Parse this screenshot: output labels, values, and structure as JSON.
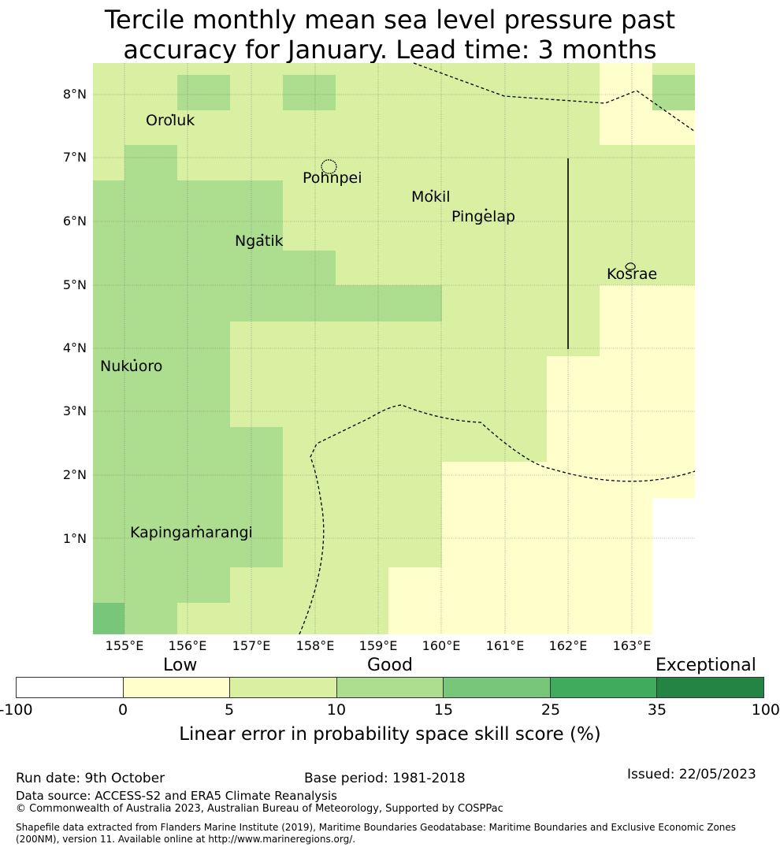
{
  "title_line1": "Tercile monthly mean sea level pressure past",
  "title_line2": "accuracy for January. Lead time: 3 months",
  "map": {
    "lon_labels": [
      "155°E",
      "156°E",
      "157°E",
      "158°E",
      "159°E",
      "160°E",
      "161°E",
      "162°E",
      "163°E"
    ],
    "lat_labels": [
      "8°N",
      "7°N",
      "6°N",
      "5°N",
      "4°N",
      "3°N",
      "2°N",
      "1°N"
    ],
    "places": [
      "Oroluk",
      "Pohnpei",
      "Mokil",
      "Pingelap",
      "Ngatik",
      "Kosrae",
      "Nukuoro",
      "Kapingamarangi"
    ],
    "category_colors": {
      "white": "#ffffff",
      "low": "#ffffcc",
      "good_low": "#d9f0a3",
      "good_high": "#addd8e",
      "good_plus": "#78c679",
      "excellent": "#41ab5d",
      "exceptional": "#238443"
    }
  },
  "colorbar": {
    "category_labels": [
      "Low",
      "Good",
      "Exceptional"
    ],
    "ticks": [
      "-100",
      "0",
      "5",
      "10",
      "15",
      "25",
      "35",
      "100"
    ],
    "colors": [
      "#ffffff",
      "#ffffcc",
      "#d9f0a3",
      "#addd8e",
      "#78c679",
      "#41ab5d",
      "#238443"
    ],
    "label": "Linear error in probability space skill score (%)"
  },
  "footer": {
    "run_date": "Run date: 9th October",
    "base_period": "Base period: 1981-2018",
    "issued": "Issued: 22/05/2023",
    "data_source": "Data source: ACCESS-S2 and ERA5 Climate Reanalysis",
    "copyright": "© Commonwealth of Australia 2023, Australian Bureau of Meteorology, Supported by COSPPac",
    "shapefile": "Shapefile data extracted from Flanders Marine Institute (2019), Maritime Boundaries Geodatabase: Maritime Boundaries and Exclusive Economic Zones (200NM), version 11. Available online at http://www.marineregions.org/."
  }
}
